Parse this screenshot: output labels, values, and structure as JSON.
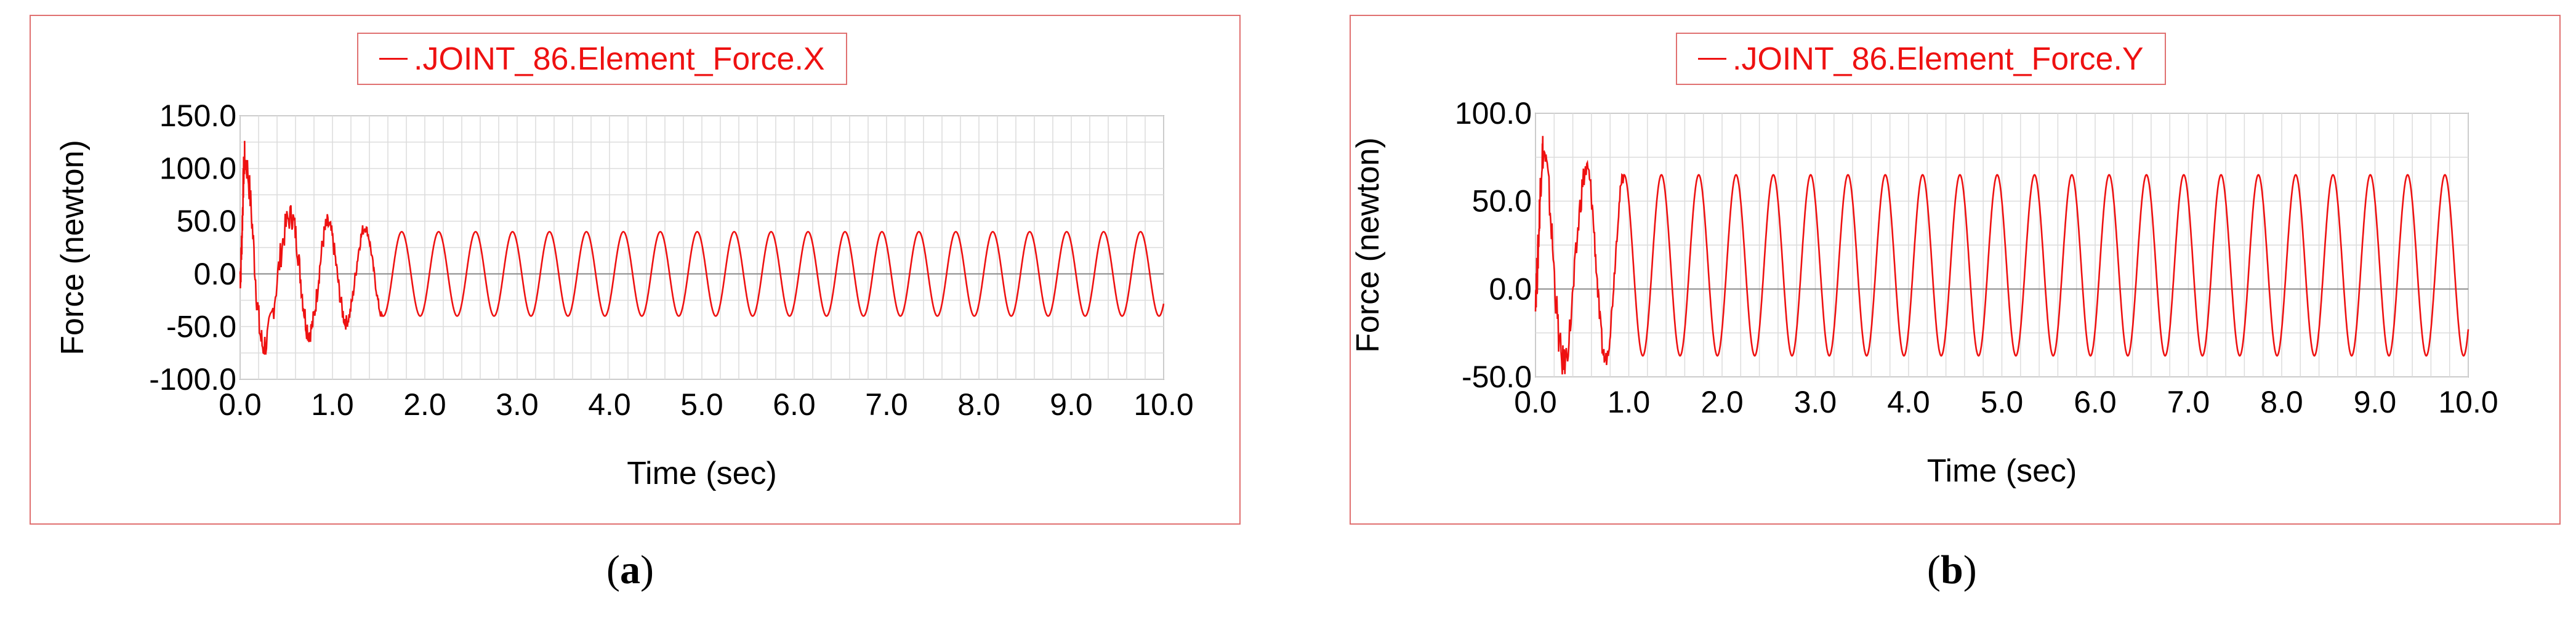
{
  "chart_data": [
    {
      "type": "line",
      "panel_caption": "a",
      "legend": ".JOINT_86.Element_Force.X",
      "xlabel": "Time (sec)",
      "ylabel": "Force (newton)",
      "xlim": [
        0.0,
        10.0
      ],
      "ylim": [
        -100.0,
        150.0
      ],
      "xticks": [
        "0.0",
        "1.0",
        "2.0",
        "3.0",
        "4.0",
        "5.0",
        "6.0",
        "7.0",
        "8.0",
        "9.0",
        "10.0"
      ],
      "yticks": [
        "-100.0",
        "-50.0",
        "0.0",
        "50.0",
        "100.0",
        "150.0"
      ],
      "grid": true,
      "color": "#ee1111",
      "series": [
        {
          "steady_period_sec": 0.4,
          "steady_max": 40,
          "steady_min": -40,
          "transient_peaks": [
            {
              "x": 0.05,
              "y": 108
            },
            {
              "x": 0.25,
              "y": -68
            },
            {
              "x": 0.55,
              "y": 55
            },
            {
              "x": 0.75,
              "y": -55
            },
            {
              "x": 0.95,
              "y": 47
            },
            {
              "x": 1.15,
              "y": -45
            },
            {
              "x": 1.35,
              "y": 44
            },
            {
              "x": 1.55,
              "y": -42
            }
          ]
        }
      ]
    },
    {
      "type": "line",
      "panel_caption": "b",
      "legend": ".JOINT_86.Element_Force.Y",
      "xlabel": "Time (sec)",
      "ylabel": "Force (newton)",
      "xlim": [
        0.0,
        10.0
      ],
      "ylim": [
        -50.0,
        100.0
      ],
      "xticks": [
        "0.0",
        "1.0",
        "2.0",
        "3.0",
        "4.0",
        "5.0",
        "6.0",
        "7.0",
        "8.0",
        "9.0",
        "10.0"
      ],
      "yticks": [
        "-50.0",
        "0.0",
        "50.0",
        "100.0"
      ],
      "grid": true,
      "color": "#ee1111",
      "series": [
        {
          "steady_period_sec": 0.4,
          "steady_max": 65,
          "steady_min": -38,
          "transient_peaks": [
            {
              "x": 0.08,
              "y": 78
            },
            {
              "x": 0.3,
              "y": -42
            },
            {
              "x": 0.55,
              "y": 68
            },
            {
              "x": 0.75,
              "y": -40
            },
            {
              "x": 0.95,
              "y": 65
            }
          ]
        }
      ]
    }
  ]
}
